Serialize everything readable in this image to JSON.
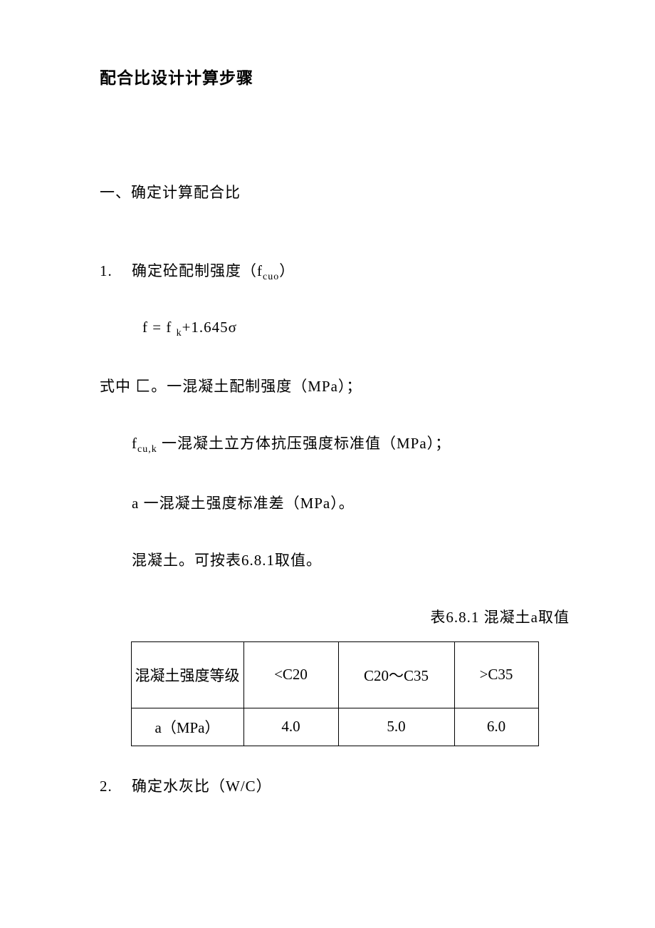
{
  "title": "配合比设计计算步骤",
  "sections": {
    "one_heading": "一、确定计算配合比",
    "item1_num": "1.",
    "item1_text": "确定砼配制强度（f",
    "item1_text_end": "）",
    "item1_sub": "cuo",
    "formula": "f = f",
    "formula_sub": "k",
    "formula_end": "+1.645σ",
    "line1_a": "式中 匚。一混凝土配制强度（MPa）；",
    "line2_a": "f",
    "line2_sub": "cu,k",
    "line2_b": " 一混凝土立方体抗压强度标准值（MPa）；",
    "line3": "a 一混凝土强度标准差（MPa）。",
    "line4": "混凝土。可按表6.8.1取值。",
    "table_caption": "表6.8.1 混凝土a取值",
    "item2_num": "2.",
    "item2_text": "确定水灰比（W/C）"
  },
  "table": {
    "row1": {
      "c1": "混凝土强度等级",
      "c2": "<C20",
      "c3": "C20～C35",
      "c4": ">C35"
    },
    "row2": {
      "c1": "a（MPa）",
      "c2": "4.0",
      "c3": "5.0",
      "c4": "6.0"
    }
  }
}
